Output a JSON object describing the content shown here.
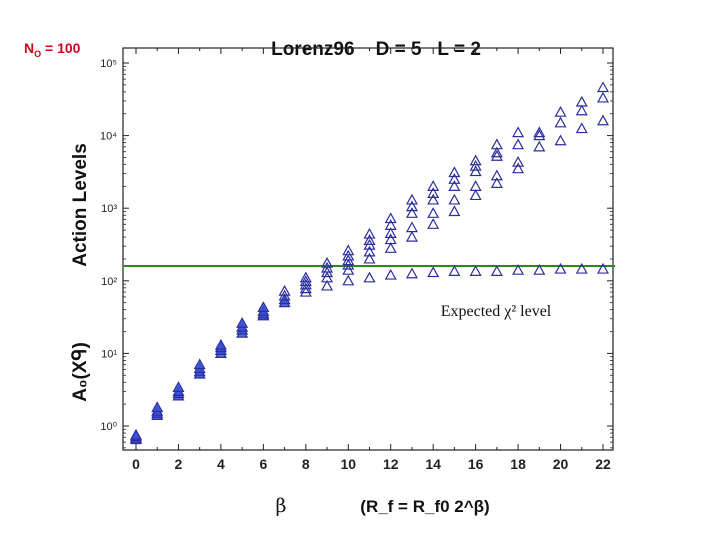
{
  "annotation_no": {
    "prefix": "N",
    "subscript": "O",
    "suffix": " = 100",
    "color": "#d0021b"
  },
  "chart_data": {
    "type": "scatter",
    "title": "Lorenz96    D = 5   L = 2",
    "ylabel_top": "Action Levels",
    "ylabel_bottom": "A₀(Xᑫ)",
    "xlabel_left": "β",
    "xlabel_right": "(R_f = R_f0 2^β)",
    "yscale": "log",
    "ylim": [
      0.55,
      200000
    ],
    "xlim": [
      0,
      22.5
    ],
    "x_ticks": [
      0,
      2,
      4,
      6,
      8,
      10,
      12,
      14,
      16,
      18,
      20,
      22
    ],
    "y_ticks": [
      {
        "value": 1,
        "label": "10⁰"
      },
      {
        "value": 10,
        "label": "10¹"
      },
      {
        "value": 100,
        "label": "10²"
      },
      {
        "value": 1000,
        "label": "10³"
      },
      {
        "value": 10000,
        "label": "10⁴"
      },
      {
        "value": 100000,
        "label": "10⁵"
      }
    ],
    "expected_level": {
      "value": 160,
      "label": "Expected χ² level",
      "color": "#2a8a1e"
    },
    "marker": {
      "shape": "triangle",
      "stroke": "#2b2f9e",
      "fill": "#3c52d8"
    },
    "points": [
      {
        "x": 0,
        "y": 0.65
      },
      {
        "x": 0,
        "y": 0.68
      },
      {
        "x": 0,
        "y": 0.72
      },
      {
        "x": 0,
        "y": 0.75
      },
      {
        "x": 1,
        "y": 1.4
      },
      {
        "x": 1,
        "y": 1.5
      },
      {
        "x": 1,
        "y": 1.6
      },
      {
        "x": 1,
        "y": 1.8
      },
      {
        "x": 2,
        "y": 2.6
      },
      {
        "x": 2,
        "y": 2.8
      },
      {
        "x": 2,
        "y": 3.0
      },
      {
        "x": 2,
        "y": 3.4
      },
      {
        "x": 3,
        "y": 5.2
      },
      {
        "x": 3,
        "y": 5.6
      },
      {
        "x": 3,
        "y": 6.2
      },
      {
        "x": 3,
        "y": 7.0
      },
      {
        "x": 4,
        "y": 10
      },
      {
        "x": 4,
        "y": 11
      },
      {
        "x": 4,
        "y": 12
      },
      {
        "x": 4,
        "y": 13
      },
      {
        "x": 5,
        "y": 19
      },
      {
        "x": 5,
        "y": 21
      },
      {
        "x": 5,
        "y": 23
      },
      {
        "x": 5,
        "y": 26
      },
      {
        "x": 6,
        "y": 33
      },
      {
        "x": 6,
        "y": 35
      },
      {
        "x": 6,
        "y": 38
      },
      {
        "x": 6,
        "y": 43
      },
      {
        "x": 7,
        "y": 50
      },
      {
        "x": 7,
        "y": 55
      },
      {
        "x": 7,
        "y": 62
      },
      {
        "x": 7,
        "y": 72
      },
      {
        "x": 8,
        "y": 70
      },
      {
        "x": 8,
        "y": 78
      },
      {
        "x": 8,
        "y": 88
      },
      {
        "x": 8,
        "y": 98
      },
      {
        "x": 8,
        "y": 110
      },
      {
        "x": 9,
        "y": 85
      },
      {
        "x": 9,
        "y": 110
      },
      {
        "x": 9,
        "y": 130
      },
      {
        "x": 9,
        "y": 150
      },
      {
        "x": 9,
        "y": 175
      },
      {
        "x": 10,
        "y": 100
      },
      {
        "x": 10,
        "y": 140
      },
      {
        "x": 10,
        "y": 165
      },
      {
        "x": 10,
        "y": 190
      },
      {
        "x": 10,
        "y": 220
      },
      {
        "x": 10,
        "y": 260
      },
      {
        "x": 11,
        "y": 110
      },
      {
        "x": 11,
        "y": 200
      },
      {
        "x": 11,
        "y": 250
      },
      {
        "x": 11,
        "y": 310
      },
      {
        "x": 11,
        "y": 360
      },
      {
        "x": 11,
        "y": 440
      },
      {
        "x": 12,
        "y": 120
      },
      {
        "x": 12,
        "y": 280
      },
      {
        "x": 12,
        "y": 370
      },
      {
        "x": 12,
        "y": 450
      },
      {
        "x": 12,
        "y": 580
      },
      {
        "x": 12,
        "y": 720
      },
      {
        "x": 13,
        "y": 125
      },
      {
        "x": 13,
        "y": 400
      },
      {
        "x": 13,
        "y": 540
      },
      {
        "x": 13,
        "y": 850
      },
      {
        "x": 13,
        "y": 1050
      },
      {
        "x": 13,
        "y": 1300
      },
      {
        "x": 14,
        "y": 130
      },
      {
        "x": 14,
        "y": 600
      },
      {
        "x": 14,
        "y": 850
      },
      {
        "x": 14,
        "y": 1300
      },
      {
        "x": 14,
        "y": 1600
      },
      {
        "x": 14,
        "y": 2000
      },
      {
        "x": 15,
        "y": 135
      },
      {
        "x": 15,
        "y": 900
      },
      {
        "x": 15,
        "y": 1300
      },
      {
        "x": 15,
        "y": 2000
      },
      {
        "x": 15,
        "y": 2500
      },
      {
        "x": 15,
        "y": 3100
      },
      {
        "x": 16,
        "y": 135
      },
      {
        "x": 16,
        "y": 1500
      },
      {
        "x": 16,
        "y": 2000
      },
      {
        "x": 16,
        "y": 3200
      },
      {
        "x": 16,
        "y": 3800
      },
      {
        "x": 16,
        "y": 4500
      },
      {
        "x": 17,
        "y": 135
      },
      {
        "x": 17,
        "y": 2200
      },
      {
        "x": 17,
        "y": 2800
      },
      {
        "x": 17,
        "y": 5200
      },
      {
        "x": 17,
        "y": 5800
      },
      {
        "x": 17,
        "y": 7500
      },
      {
        "x": 18,
        "y": 140
      },
      {
        "x": 18,
        "y": 3500
      },
      {
        "x": 18,
        "y": 4300
      },
      {
        "x": 18,
        "y": 7500
      },
      {
        "x": 18,
        "y": 11000
      },
      {
        "x": 19,
        "y": 140
      },
      {
        "x": 19,
        "y": 7000
      },
      {
        "x": 19,
        "y": 10000
      },
      {
        "x": 19,
        "y": 11000
      },
      {
        "x": 20,
        "y": 145
      },
      {
        "x": 20,
        "y": 8500
      },
      {
        "x": 20,
        "y": 15000
      },
      {
        "x": 20,
        "y": 21000
      },
      {
        "x": 21,
        "y": 145
      },
      {
        "x": 21,
        "y": 12500
      },
      {
        "x": 21,
        "y": 22000
      },
      {
        "x": 21,
        "y": 29000
      },
      {
        "x": 22,
        "y": 145
      },
      {
        "x": 22,
        "y": 16000
      },
      {
        "x": 22,
        "y": 33000
      },
      {
        "x": 22,
        "y": 46000
      }
    ]
  }
}
